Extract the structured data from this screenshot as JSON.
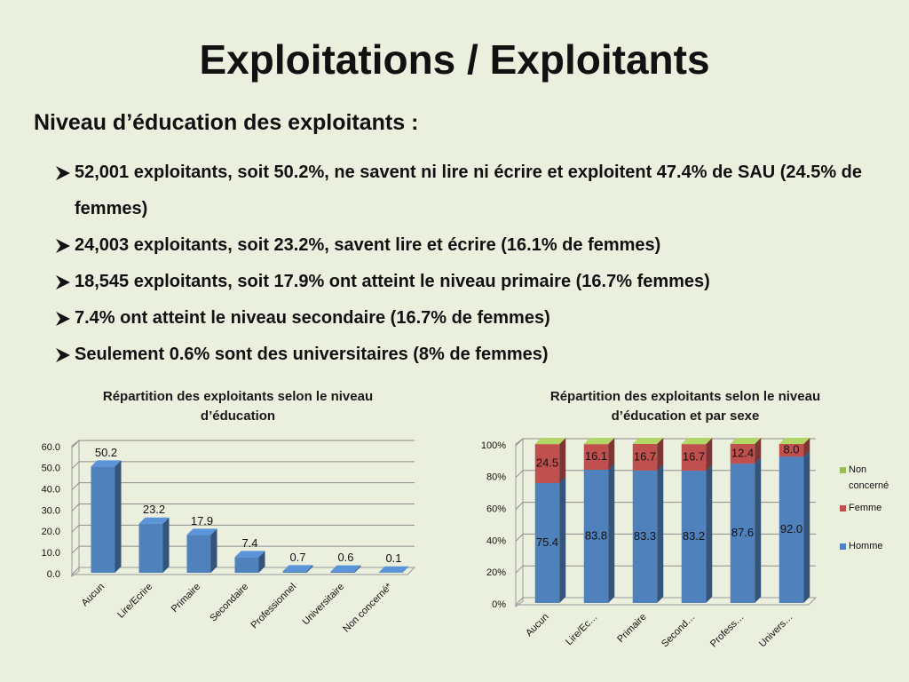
{
  "title": "Exploitations / Exploitants",
  "subtitle": "Niveau d’éducation des exploitants :",
  "bullets": [
    "52,001 exploitants, soit 50.2%, ne savent ni lire ni écrire et exploitent 47.4% de SAU (24.5% de femmes)",
    "24,003 exploitants, soit 23.2%,  savent lire et écrire (16.1% de femmes)",
    "18,545 exploitants, soit 17.9% ont atteint le niveau primaire (16.7% femmes)",
    "7.4% ont atteint le niveau secondaire (16.7% de femmes)",
    "Seulement 0.6% sont des universitaires (8% de femmes)"
  ],
  "chart_data": [
    {
      "type": "bar",
      "title": "Répartition des exploitants selon le niveau d’éducation",
      "categories": [
        "Aucun",
        "Lire/Ecrire",
        "Primaire",
        "Secondaire",
        "Professionnel",
        "Universitaire",
        "Non concerné*"
      ],
      "values": [
        50.2,
        23.2,
        17.9,
        7.4,
        0.7,
        0.6,
        0.1
      ],
      "color": "#4f81bd",
      "ylim": [
        0,
        60
      ],
      "yticks": [
        {
          "value": 0,
          "label": "0.0"
        },
        {
          "value": 10,
          "label": "10.0"
        },
        {
          "value": 20,
          "label": "20.0"
        },
        {
          "value": 30,
          "label": "30.0"
        },
        {
          "value": 40,
          "label": "40.0"
        },
        {
          "value": 50,
          "label": "50.0"
        },
        {
          "value": 60,
          "label": "60.0"
        }
      ],
      "grid": true
    },
    {
      "type": "stacked_bar",
      "title": "Répartition des exploitants selon le niveau d’éducation et par sexe",
      "categories": [
        "Aucun",
        "Lire/Ec…",
        "Primaire",
        "Second…",
        "Profess…",
        "Univers…"
      ],
      "series": [
        {
          "name": "Homme",
          "color": "#4f81bd",
          "values": [
            75.4,
            83.8,
            83.3,
            83.2,
            87.6,
            92.0
          ],
          "value_labels": [
            "75.4",
            "83.8",
            "83.3",
            "83.2",
            "87.6",
            "92.0"
          ]
        },
        {
          "name": "Femme",
          "color": "#c0504d",
          "values": [
            24.5,
            16.1,
            16.7,
            16.7,
            12.4,
            8.0
          ],
          "value_labels": [
            "24.5",
            "16.1",
            "16.7",
            "16.7",
            "12.4",
            "8.0"
          ]
        },
        {
          "name": "Non concerné",
          "color": "#9bbb59",
          "values": [
            0.1,
            0.1,
            0,
            0.1,
            0,
            0
          ]
        }
      ],
      "ylim": [
        0,
        100
      ],
      "yticks": [
        {
          "value": 0,
          "label": "0%"
        },
        {
          "value": 20,
          "label": "20%"
        },
        {
          "value": 40,
          "label": "40%"
        },
        {
          "value": 60,
          "label": "60%"
        },
        {
          "value": 80,
          "label": "80%"
        },
        {
          "value": 100,
          "label": "100%"
        }
      ],
      "grid": true,
      "legend": "right"
    }
  ]
}
